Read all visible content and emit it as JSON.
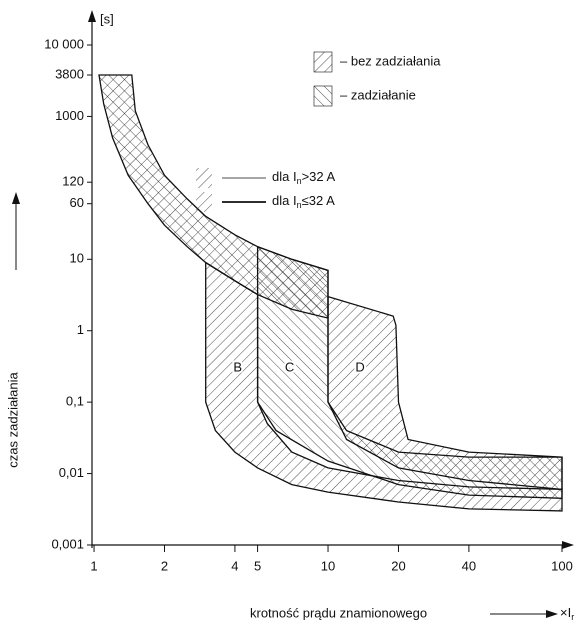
{
  "chart_data": {
    "type": "area",
    "y_unit": "[s]",
    "ylabel": "czas zadziałania",
    "xlabel": "krotność prądu znamionowego",
    "x_unit": {
      "prefix": "×I",
      "sub": "r"
    },
    "log_x": true,
    "log_y": true,
    "xlim": [
      0.98,
      100
    ],
    "ylim": [
      0.001,
      10000
    ],
    "xticks": [
      1,
      2,
      4,
      5,
      10,
      20,
      40,
      100
    ],
    "yticks": [
      {
        "value": 10000,
        "label": "10 000"
      },
      3800,
      1000,
      120,
      60,
      10,
      1,
      {
        "value": 0.1,
        "label": "0,1"
      },
      {
        "value": 0.01,
        "label": "0,01"
      },
      {
        "value": 0.001,
        "label": "0,001"
      }
    ],
    "color": "#111111",
    "series": [
      {
        "pattern": "cross",
        "x": [
          1.05,
          1.1,
          1.2,
          1.4,
          1.7,
          2,
          2.5,
          3,
          4,
          5,
          7,
          10,
          10,
          7,
          5,
          4,
          3,
          2.5,
          2,
          1.7,
          1.5,
          1.45
        ],
        "y": [
          3800,
          1500,
          500,
          150,
          60,
          30,
          15,
          9,
          5,
          3.2,
          2,
          1.5,
          7,
          10,
          15,
          22,
          40,
          70,
          150,
          400,
          1200,
          3800
        ]
      },
      {
        "name": "B",
        "pattern": "fwd",
        "x": [
          3,
          3,
          3.3,
          4,
          5,
          7,
          10,
          20,
          40,
          100,
          100,
          40,
          20,
          10,
          7,
          5.5,
          5,
          5,
          4
        ],
        "y": [
          9,
          0.1,
          0.04,
          0.02,
          0.012,
          0.007,
          0.0055,
          0.004,
          0.0032,
          0.003,
          0.006,
          0.0065,
          0.008,
          0.012,
          0.02,
          0.05,
          0.1,
          3.2,
          5
        ]
      },
      {
        "name": "C",
        "pattern": "back",
        "x": [
          5,
          5,
          6,
          10,
          20,
          40,
          100,
          100,
          40,
          20,
          12,
          10,
          10,
          7
        ],
        "y": [
          15,
          0.1,
          0.04,
          0.015,
          0.007,
          0.005,
          0.0045,
          0.017,
          0.017,
          0.02,
          0.04,
          0.1,
          7,
          10
        ]
      },
      {
        "name": "D",
        "pattern": "fwd",
        "x": [
          10,
          10,
          12,
          20,
          40,
          100,
          100,
          40,
          22,
          20,
          19.5,
          19
        ],
        "y": [
          3,
          0.1,
          0.03,
          0.012,
          0.008,
          0.006,
          0.017,
          0.02,
          0.03,
          0.1,
          1.2,
          1.6
        ]
      }
    ],
    "legend": [
      {
        "label": "– bez zadziałania",
        "pattern": "fwd"
      },
      {
        "label": "– zadziałanie",
        "pattern": "back"
      }
    ],
    "line_legend": [
      {
        "prefix": "dla I",
        "sub": "n",
        "suffix": ">32 A",
        "line_width": 0.8
      },
      {
        "prefix": "dla I",
        "sub": "n",
        "suffix": "≤32 A",
        "line_width": 1.8
      }
    ]
  }
}
